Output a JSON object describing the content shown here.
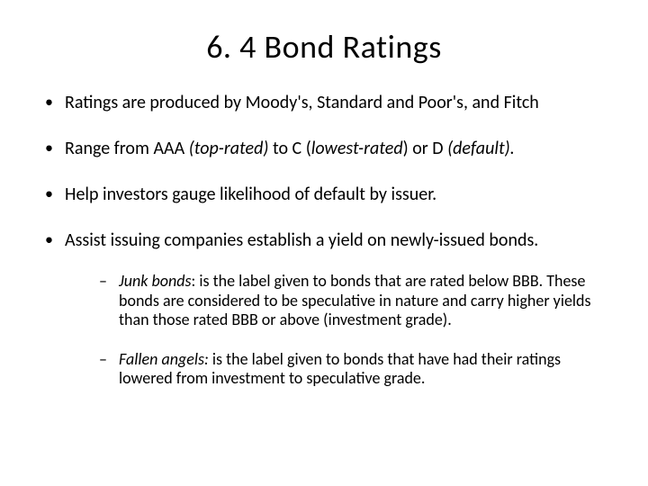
{
  "title": "6. 4  Bond Ratings",
  "bullets": {
    "b1": "Ratings are produced by Moody's, Standard and Poor's, and Fitch",
    "b2_pre": "Range from AAA ",
    "b2_top": "(top-rated)",
    "b2_mid": " to C (",
    "b2_low": "lowest-rated",
    "b2_post": ") or D ",
    "b2_def": "(default).",
    "b3": "Help investors gauge likelihood of default by issuer.",
    "b4": "Assist issuing companies establish a yield on newly-issued bonds."
  },
  "sub": {
    "s1_lead": " Junk bonds",
    "s1_body": ": is the label given to bonds that are rated below BBB. These bonds are considered to be speculative in nature and carry higher yields than those rated BBB or above (investment grade).",
    "s2_lead": "Fallen angels:",
    "s2_body": " is the label given to bonds that have had their ratings lowered from investment to speculative grade."
  }
}
